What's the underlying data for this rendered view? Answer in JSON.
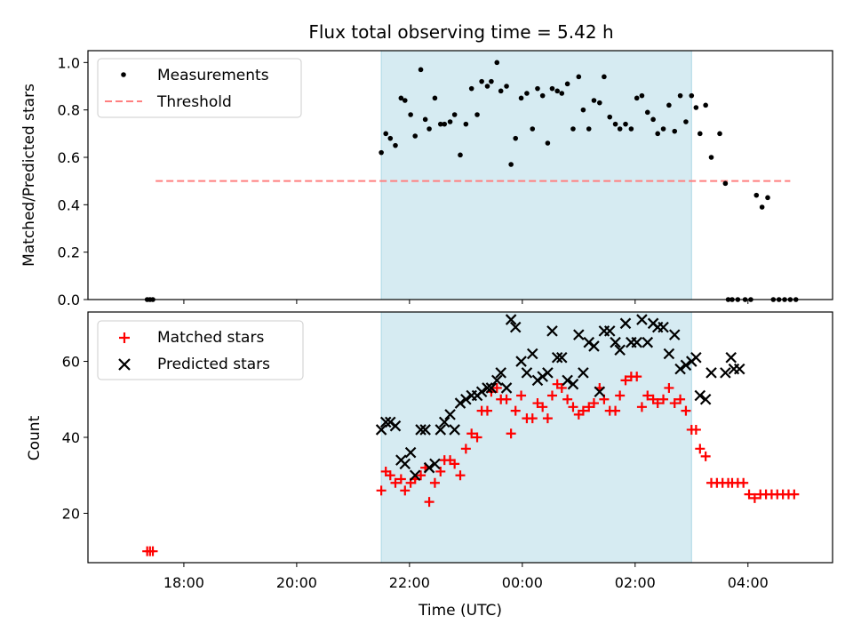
{
  "title": "Flux total observing time = 5.42 h",
  "chart_data": [
    {
      "type": "scatter",
      "ylabel": "Matched/Predicted stars",
      "ylim": [
        0,
        1.05
      ],
      "yticks": [
        0.0,
        0.2,
        0.4,
        0.6,
        0.8,
        1.0
      ],
      "ytick_labels": [
        "0.0",
        "0.2",
        "0.4",
        "0.6",
        "0.8",
        "1.0"
      ],
      "legend_position": "top-left",
      "highlight_span": {
        "from_hours": -2.5,
        "to_hours": 3.0,
        "color": "#add8e6"
      },
      "threshold": {
        "name": "Threshold",
        "value": 0.5,
        "x_range_hours": [
          -6.5,
          4.75
        ],
        "color": "#ff7f7f"
      },
      "series": [
        {
          "name": "Measurements",
          "color": "#000000",
          "x_hours": [
            -6.65,
            -6.6,
            -6.55,
            -2.5,
            -2.42,
            -2.34,
            -2.25,
            -2.15,
            -2.08,
            -1.98,
            -1.9,
            -1.8,
            -1.72,
            -1.65,
            -1.55,
            -1.45,
            -1.38,
            -1.28,
            -1.2,
            -1.1,
            -1.0,
            -0.9,
            -0.8,
            -0.72,
            -0.62,
            -0.55,
            -0.45,
            -0.38,
            -0.28,
            -0.2,
            -0.12,
            -0.02,
            0.08,
            0.18,
            0.27,
            0.36,
            0.45,
            0.53,
            0.62,
            0.7,
            0.8,
            0.9,
            1.0,
            1.08,
            1.18,
            1.27,
            1.37,
            1.45,
            1.55,
            1.65,
            1.73,
            1.83,
            1.93,
            2.03,
            2.12,
            2.22,
            2.32,
            2.4,
            2.5,
            2.6,
            2.7,
            2.8,
            2.9,
            3.0,
            3.08,
            3.15,
            3.25,
            3.35,
            3.5,
            3.6,
            3.65,
            3.72,
            3.82,
            3.95,
            4.05,
            4.15,
            4.25,
            4.35,
            4.45,
            4.55,
            4.65,
            4.75,
            4.85
          ],
          "y": [
            0,
            0,
            0,
            0.62,
            0.7,
            0.68,
            0.65,
            0.85,
            0.84,
            0.78,
            0.69,
            0.97,
            0.76,
            0.72,
            0.85,
            0.74,
            0.74,
            0.75,
            0.78,
            0.61,
            0.74,
            0.89,
            0.78,
            0.92,
            0.9,
            0.92,
            1.0,
            0.88,
            0.9,
            0.57,
            0.68,
            0.85,
            0.87,
            0.72,
            0.89,
            0.86,
            0.66,
            0.89,
            0.88,
            0.87,
            0.91,
            0.72,
            0.94,
            0.8,
            0.72,
            0.84,
            0.83,
            0.94,
            0.77,
            0.74,
            0.72,
            0.74,
            0.72,
            0.85,
            0.86,
            0.79,
            0.76,
            0.7,
            0.72,
            0.82,
            0.71,
            0.86,
            0.75,
            0.86,
            0.81,
            0.7,
            0.82,
            0.6,
            0.7,
            0.49,
            0,
            0,
            0,
            0,
            0,
            0.44,
            0.39,
            0.43,
            0,
            0,
            0,
            0,
            0
          ]
        }
      ]
    },
    {
      "type": "scatter",
      "ylabel": "Count",
      "xlabel": "Time (UTC)",
      "ylim": [
        7,
        73
      ],
      "yticks": [
        20,
        40,
        60
      ],
      "ytick_labels": [
        "20",
        "40",
        "60"
      ],
      "x_range_hours": [
        -7.7,
        5.5
      ],
      "xticks_hours": [
        -6,
        -4,
        -2,
        0,
        2,
        4
      ],
      "xtick_labels": [
        "18:00",
        "20:00",
        "22:00",
        "00:00",
        "02:00",
        "04:00"
      ],
      "legend_position": "top-left",
      "highlight_span": {
        "from_hours": -2.5,
        "to_hours": 3.0,
        "color": "#add8e6"
      },
      "series": [
        {
          "name": "Matched stars",
          "marker": "+",
          "color": "#ff0000",
          "x_hours": [
            -6.65,
            -6.6,
            -6.55,
            -2.5,
            -2.42,
            -2.34,
            -2.25,
            -2.15,
            -2.08,
            -1.98,
            -1.9,
            -1.8,
            -1.72,
            -1.65,
            -1.55,
            -1.45,
            -1.38,
            -1.28,
            -1.2,
            -1.1,
            -1.0,
            -0.9,
            -0.8,
            -0.72,
            -0.62,
            -0.55,
            -0.45,
            -0.38,
            -0.28,
            -0.2,
            -0.12,
            -0.02,
            0.08,
            0.18,
            0.27,
            0.36,
            0.45,
            0.53,
            0.62,
            0.7,
            0.8,
            0.9,
            1.0,
            1.08,
            1.18,
            1.27,
            1.37,
            1.45,
            1.55,
            1.65,
            1.73,
            1.83,
            1.93,
            2.03,
            2.12,
            2.22,
            2.32,
            2.4,
            2.5,
            2.6,
            2.7,
            2.8,
            2.9,
            3.0,
            3.08,
            3.15,
            3.25,
            3.35,
            3.45,
            3.55,
            3.65,
            3.72,
            3.82,
            3.92,
            4.02,
            4.12,
            4.22,
            4.32,
            4.42,
            4.52,
            4.62,
            4.72,
            4.82
          ],
          "y": [
            10,
            10,
            10,
            26,
            31,
            30,
            28,
            29,
            26,
            28,
            29,
            30,
            32,
            23,
            28,
            31,
            34,
            34,
            33,
            30,
            37,
            41,
            40,
            47,
            47,
            52,
            53,
            50,
            50,
            41,
            47,
            51,
            45,
            45,
            49,
            48,
            45,
            51,
            54,
            53,
            50,
            48,
            46,
            47,
            48,
            49,
            53,
            50,
            47,
            47,
            51,
            55,
            56,
            56,
            48,
            51,
            50,
            49,
            50,
            53,
            49,
            50,
            47,
            42,
            42,
            37,
            35,
            28,
            28,
            28,
            28,
            28,
            28,
            28,
            25,
            24,
            25,
            25,
            25,
            25,
            25,
            25,
            25
          ]
        },
        {
          "name": "Predicted stars",
          "marker": "x",
          "color": "#000000",
          "x_hours": [
            -2.5,
            -2.42,
            -2.34,
            -2.25,
            -2.15,
            -2.08,
            -1.98,
            -1.9,
            -1.8,
            -1.72,
            -1.65,
            -1.55,
            -1.45,
            -1.38,
            -1.28,
            -1.2,
            -1.1,
            -1.0,
            -0.9,
            -0.8,
            -0.72,
            -0.62,
            -0.55,
            -0.45,
            -0.38,
            -0.28,
            -0.2,
            -0.12,
            -0.02,
            0.08,
            0.18,
            0.27,
            0.36,
            0.45,
            0.53,
            0.62,
            0.7,
            0.8,
            0.9,
            1.0,
            1.08,
            1.18,
            1.27,
            1.37,
            1.45,
            1.55,
            1.65,
            1.73,
            1.83,
            1.93,
            2.03,
            2.12,
            2.22,
            2.32,
            2.4,
            2.5,
            2.6,
            2.7,
            2.8,
            2.9,
            3.0,
            3.08,
            3.15,
            3.25,
            3.35,
            3.6,
            3.7,
            3.75,
            3.85
          ],
          "y": [
            42,
            44,
            44,
            43,
            34,
            33,
            36,
            30,
            42,
            42,
            32,
            33,
            42,
            44,
            46,
            42,
            49,
            50,
            51,
            51,
            52,
            53,
            53,
            55,
            57,
            53,
            71,
            69,
            60,
            57,
            62,
            55,
            56,
            57,
            68,
            61,
            61,
            55,
            54,
            67,
            57,
            65,
            64,
            52,
            68,
            68,
            65,
            63,
            70,
            65,
            65,
            71,
            65,
            70,
            69,
            69,
            62,
            67,
            58,
            59,
            60,
            61,
            51,
            50,
            57,
            57,
            61,
            58,
            58
          ]
        }
      ]
    }
  ]
}
